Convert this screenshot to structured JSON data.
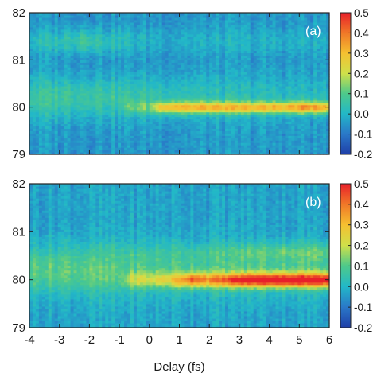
{
  "chart_data": [
    {
      "type": "heatmap",
      "panel_label": "(a)",
      "xlabel": "",
      "ylabel": "",
      "xlim": [
        -4,
        6
      ],
      "ylim": [
        79,
        82
      ],
      "x_ticks": [
        -4,
        -3,
        -2,
        -1,
        0,
        1,
        2,
        3,
        4,
        5,
        6
      ],
      "x_tick_labels": [
        "-4",
        "-3",
        "-2",
        "-1",
        "0",
        "1",
        "2",
        "3",
        "4",
        "5",
        "6"
      ],
      "y_ticks": [
        79,
        80,
        81,
        82
      ],
      "y_tick_labels": [
        "79",
        "80",
        "81",
        "82"
      ],
      "colorbar": {
        "range": [
          -0.2,
          0.5
        ],
        "ticks": [
          -0.2,
          -0.1,
          0.0,
          0.1,
          0.2,
          0.3,
          0.4,
          0.5
        ],
        "tick_labels": [
          "-0.2",
          "-0.1",
          "0.0",
          "0.1",
          "0.2",
          "0.3",
          "0.4",
          "0.5"
        ],
        "colors": [
          "#1f3fa8",
          "#2a78c8",
          "#22b8c8",
          "#4ec98a",
          "#cfe04a",
          "#f5c030",
          "#f07828",
          "#e8202a"
        ]
      },
      "background_value": -0.05,
      "features": [
        {
          "center_y": 80.0,
          "y_width": 0.12,
          "x_points": [
            -4,
            -1.0,
            -0.5,
            0.0,
            0.5,
            1.0,
            2.0,
            3.0,
            4.0,
            4.8,
            5.2,
            6.0
          ],
          "amplitudes": [
            0.0,
            0.0,
            0.1,
            0.1,
            0.28,
            0.3,
            0.3,
            0.3,
            0.3,
            0.33,
            0.38,
            0.3
          ]
        },
        {
          "center_y": 80.2,
          "y_width": 0.45,
          "x_points": [
            -4,
            -2,
            0,
            2,
            6
          ],
          "amplitudes": [
            0.12,
            0.12,
            0.1,
            0.08,
            0.06
          ]
        },
        {
          "center_y": 81.4,
          "y_width": 0.25,
          "x_points": [
            -4,
            -2.5,
            -2.2,
            -1.5,
            0,
            6
          ],
          "amplitudes": [
            0.06,
            0.1,
            0.14,
            0.08,
            0.04,
            0.04
          ]
        }
      ]
    },
    {
      "type": "heatmap",
      "panel_label": "(b)",
      "xlabel": "Delay (fs)",
      "ylabel": "",
      "xlim": [
        -4,
        6
      ],
      "ylim": [
        79,
        82
      ],
      "x_ticks": [
        -4,
        -3,
        -2,
        -1,
        0,
        1,
        2,
        3,
        4,
        5,
        6
      ],
      "x_tick_labels": [
        "-4",
        "-3",
        "-2",
        "-1",
        "0",
        "1",
        "2",
        "3",
        "4",
        "5",
        "6"
      ],
      "y_ticks": [
        79,
        80,
        81,
        82
      ],
      "y_tick_labels": [
        "79",
        "80",
        "81",
        "82"
      ],
      "colorbar": {
        "range": [
          -0.2,
          0.5
        ],
        "ticks": [
          -0.2,
          -0.1,
          0.0,
          0.1,
          0.2,
          0.3,
          0.4,
          0.5
        ],
        "tick_labels": [
          "-0.2",
          "-0.1",
          "0.0",
          "0.1",
          "0.2",
          "0.3",
          "0.4",
          "0.5"
        ],
        "colors": [
          "#1f3fa8",
          "#2a78c8",
          "#22b8c8",
          "#4ec98a",
          "#cfe04a",
          "#f5c030",
          "#f07828",
          "#e8202a"
        ]
      },
      "background_value": -0.03,
      "features": [
        {
          "center_y": 80.0,
          "y_width": 0.14,
          "x_points": [
            -4,
            -1.0,
            -0.5,
            0.0,
            0.8,
            1.5,
            2.0,
            3.0,
            4.0,
            5.0,
            6.0
          ],
          "amplitudes": [
            0.0,
            0.02,
            0.15,
            0.15,
            0.22,
            0.38,
            0.3,
            0.45,
            0.5,
            0.5,
            0.48
          ]
        },
        {
          "center_y": 80.2,
          "y_width": 0.5,
          "x_points": [
            -4,
            -2,
            0,
            2,
            6
          ],
          "amplitudes": [
            0.14,
            0.14,
            0.12,
            0.12,
            0.12
          ]
        },
        {
          "center_y": 80.6,
          "y_width": 0.18,
          "x_points": [
            -4,
            2,
            4,
            6
          ],
          "amplitudes": [
            0.0,
            0.04,
            0.08,
            0.08
          ]
        }
      ]
    }
  ]
}
